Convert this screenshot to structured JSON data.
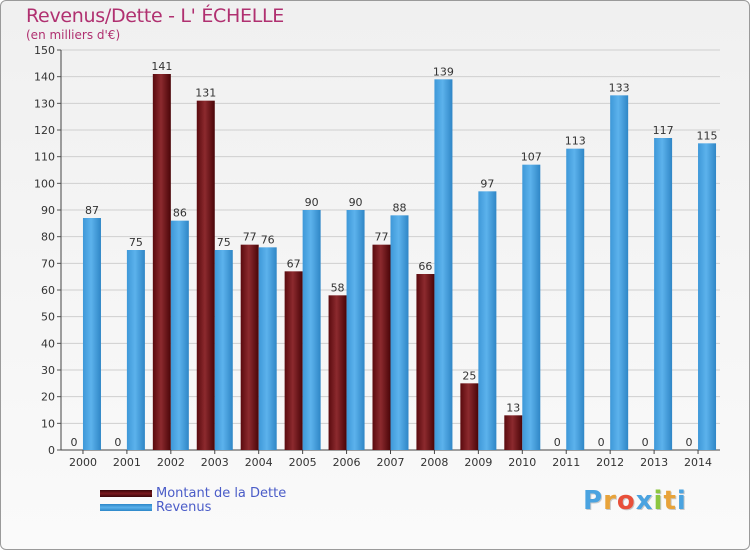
{
  "chart_data": {
    "type": "bar",
    "title": "Revenus/Dette - L' ÉCHELLE",
    "subtitle": "(en milliers d'€)",
    "categories": [
      "2000",
      "2001",
      "2002",
      "2003",
      "2004",
      "2005",
      "2006",
      "2007",
      "2008",
      "2009",
      "2010",
      "2011",
      "2012",
      "2013",
      "2014"
    ],
    "series": [
      {
        "name": "Montant de la Dette",
        "color": "#7a1a1e",
        "values": [
          0,
          0,
          141,
          131,
          77,
          67,
          58,
          77,
          66,
          25,
          13,
          0,
          0,
          0,
          0
        ]
      },
      {
        "name": "Revenus",
        "color": "#4aa3e0",
        "values": [
          87,
          75,
          86,
          75,
          76,
          90,
          90,
          88,
          139,
          97,
          107,
          113,
          133,
          117,
          115
        ]
      }
    ],
    "ylim": [
      0,
      150
    ],
    "yticks": [
      0,
      10,
      20,
      30,
      40,
      50,
      60,
      70,
      80,
      90,
      100,
      110,
      120,
      130,
      140,
      150
    ],
    "grid": true,
    "legend_position": "bottom-left"
  },
  "branding": {
    "logo_letters": [
      "P",
      "r",
      "o",
      "x",
      "i",
      "t",
      "i"
    ],
    "logo_colors": [
      "#4aa3e0",
      "#e8a33a",
      "#e8503a",
      "#4aa3e0",
      "#8cc63f",
      "#e8a33a",
      "#4aa3e0"
    ]
  }
}
